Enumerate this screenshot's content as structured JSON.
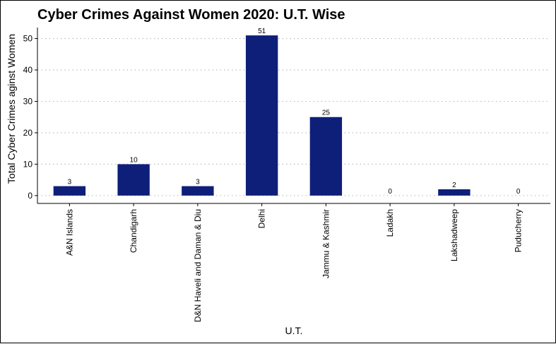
{
  "chart_data": {
    "type": "bar",
    "title": "Cyber Crimes Against Women 2020: U.T. Wise",
    "xlabel": "U.T.",
    "ylabel": "Total Cyber Crimes aginst Women",
    "categories": [
      "A&N Islands",
      "Chandigarh",
      "D&N Haveli and Daman & Diu",
      "Delhi",
      "Jammu & Kashmir",
      "Ladakh",
      "Lakshadweep",
      "Puducherry"
    ],
    "values": [
      3,
      10,
      3,
      51,
      25,
      0,
      2,
      0
    ],
    "data_labels": [
      "3",
      "10",
      "3",
      "51",
      "25",
      "0",
      "2",
      "0"
    ],
    "ylim": [
      -2.5,
      53.5
    ],
    "yticks": [
      0,
      10,
      20,
      30,
      40,
      50
    ],
    "ytick_labels": [
      "0",
      "10",
      "20",
      "30",
      "40",
      "50"
    ],
    "grid": "horizontal dotted",
    "legend": "none",
    "bar_color": "#0e1f7a"
  }
}
